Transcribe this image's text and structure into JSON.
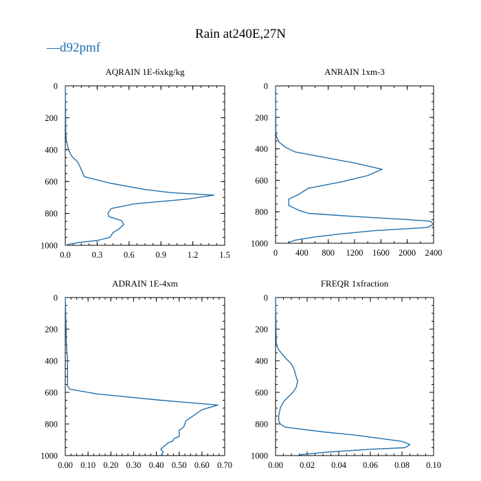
{
  "figure": {
    "title": "Rain at240E,27N",
    "legend": {
      "label": "d92pmf",
      "symbol": "—",
      "color": "#1f6fae",
      "placement": "top-left"
    },
    "line_color": "#1f6fae"
  },
  "chart_data": [
    {
      "type": "line",
      "title": "AQRAIN  1E-6xkg/kg",
      "xlabel": "",
      "ylabel": "",
      "xlim": [
        0,
        1.5
      ],
      "ylim": [
        1000,
        0
      ],
      "xticks": [
        0.0,
        0.3,
        0.6,
        0.9,
        1.2,
        1.5
      ],
      "xtick_labels": [
        "0.0",
        "0.3",
        "0.6",
        "0.9",
        "1.2",
        "1.5"
      ],
      "xminor": 0.075,
      "yticks": [
        0,
        200,
        400,
        600,
        800,
        1000
      ],
      "ytick_labels": [
        "0",
        "200",
        "400",
        "600",
        "800",
        "1000"
      ],
      "yminor": 50,
      "series": [
        {
          "name": "d92pmf",
          "x": [
            0,
            0.005,
            0.01,
            0.03,
            0.06,
            0.12,
            0.18,
            0.42,
            0.75,
            1.0,
            1.4,
            1.15,
            0.9,
            0.65,
            0.43,
            0.4,
            0.41,
            0.48,
            0.53,
            0.55,
            0.5,
            0.45,
            0.42,
            0.3,
            0.13,
            0.02
          ],
          "y": [
            0,
            300,
            340,
            400,
            440,
            480,
            570,
            610,
            650,
            670,
            685,
            710,
            725,
            740,
            770,
            800,
            820,
            835,
            845,
            870,
            900,
            920,
            950,
            970,
            982,
            995
          ]
        }
      ]
    },
    {
      "type": "line",
      "title": "ANRAIN  1xm-3",
      "xlabel": "",
      "ylabel": "",
      "xlim": [
        0,
        2400
      ],
      "ylim": [
        1000,
        0
      ],
      "xticks": [
        0,
        400,
        800,
        1200,
        1600,
        2000,
        2400
      ],
      "xtick_labels": [
        "0",
        "400",
        "800",
        "1200",
        "1600",
        "2000",
        "2400"
      ],
      "xminor": 200,
      "yticks": [
        0,
        200,
        400,
        600,
        800,
        1000
      ],
      "ytick_labels": [
        "0",
        "200",
        "400",
        "600",
        "800",
        "1000"
      ],
      "yminor": 50,
      "series": [
        {
          "name": "d92pmf",
          "x": [
            0,
            5,
            20,
            60,
            150,
            300,
            1200,
            1620,
            1400,
            1000,
            500,
            350,
            200,
            200,
            350,
            500,
            1200,
            2000,
            2350,
            2400,
            2300,
            1500,
            1000,
            600,
            300,
            200
          ],
          "y": [
            0,
            300,
            330,
            360,
            390,
            420,
            490,
            530,
            570,
            610,
            650,
            690,
            720,
            760,
            790,
            810,
            830,
            850,
            860,
            880,
            900,
            920,
            940,
            960,
            980,
            995
          ]
        }
      ]
    },
    {
      "type": "line",
      "title": "ADRAIN  1E-4xm",
      "xlabel": "",
      "ylabel": "",
      "xlim": [
        0,
        0.7
      ],
      "ylim": [
        1000,
        0
      ],
      "xticks": [
        0,
        0.1,
        0.2,
        0.3,
        0.4,
        0.5,
        0.6,
        0.7
      ],
      "xtick_labels": [
        "0.00",
        "0.10",
        "0.20",
        "0.30",
        "0.40",
        "0.50",
        "0.60",
        "0.70"
      ],
      "xminor": 0.025,
      "yticks": [
        0,
        200,
        400,
        600,
        800,
        1000
      ],
      "ytick_labels": [
        "0",
        "200",
        "400",
        "600",
        "800",
        "1000"
      ],
      "yminor": 50,
      "series": [
        {
          "name": "d92pmf",
          "x": [
            0,
            0.005,
            0.01,
            0.01,
            0.02,
            0.14,
            0.42,
            0.67,
            0.6,
            0.58,
            0.55,
            0.53,
            0.52,
            0.5,
            0.5,
            0.48,
            0.47,
            0.45,
            0.44,
            0.43,
            0.42,
            0.43,
            0.42
          ],
          "y": [
            0,
            300,
            400,
            560,
            580,
            610,
            650,
            680,
            710,
            730,
            760,
            780,
            820,
            840,
            880,
            890,
            910,
            920,
            935,
            945,
            960,
            980,
            1000
          ]
        }
      ]
    },
    {
      "type": "line",
      "title": "FREQR  1xfraction",
      "xlabel": "",
      "ylabel": "",
      "xlim": [
        0,
        0.1
      ],
      "ylim": [
        1000,
        0
      ],
      "xticks": [
        0,
        0.02,
        0.04,
        0.06,
        0.08,
        0.1
      ],
      "xtick_labels": [
        "0.00",
        "0.02",
        "0.04",
        "0.06",
        "0.08",
        "0.10"
      ],
      "xminor": 0.005,
      "yticks": [
        0,
        200,
        400,
        600,
        800,
        1000
      ],
      "ytick_labels": [
        "0",
        "200",
        "400",
        "600",
        "800",
        "1000"
      ],
      "yminor": 50,
      "series": [
        {
          "name": "d92pmf",
          "x": [
            0,
            0.0005,
            0.002,
            0.006,
            0.01,
            0.012,
            0.013,
            0.014,
            0.013,
            0.011,
            0.008,
            0.005,
            0.003,
            0.002,
            0.002,
            0.003,
            0.006,
            0.03,
            0.05,
            0.065,
            0.08,
            0.085,
            0.082,
            0.06,
            0.03,
            0.015
          ],
          "y": [
            0,
            300,
            330,
            380,
            420,
            460,
            500,
            530,
            570,
            600,
            630,
            660,
            700,
            750,
            780,
            800,
            820,
            850,
            870,
            890,
            910,
            930,
            950,
            960,
            980,
            995
          ]
        }
      ]
    }
  ]
}
